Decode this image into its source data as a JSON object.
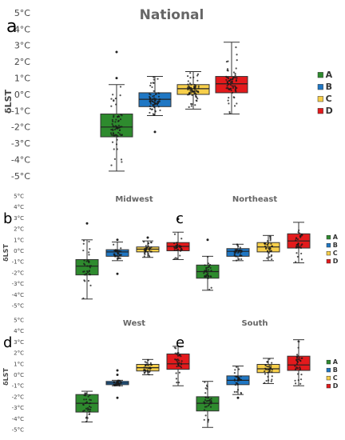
{
  "chart_data": [
    {
      "type": "box",
      "panel_letter": "a",
      "title": "National",
      "ylabel": "δLST",
      "ylim": [
        -5,
        5
      ],
      "y_ticks": [
        "5°C",
        "4°C",
        "3°C",
        "2°C",
        "1°C",
        "0°C",
        "-1°C",
        "-2°C",
        "-3°C",
        "-4°C",
        "-5°C"
      ],
      "legend": [
        "A",
        "B",
        "C",
        "D"
      ],
      "series": [
        {
          "name": "A",
          "color": "#2e8b2e",
          "min": -4.7,
          "q1": -2.6,
          "median": -2.0,
          "q3": -1.2,
          "max": 0.6,
          "outliers": [
            1.0,
            2.6
          ]
        },
        {
          "name": "B",
          "color": "#1f77c4",
          "min": -1.3,
          "q1": -0.75,
          "median": -0.3,
          "q3": 0.1,
          "max": 1.1,
          "outliers": [
            -2.3
          ]
        },
        {
          "name": "C",
          "color": "#f7cf4a",
          "min": -0.9,
          "q1": 0.0,
          "median": 0.35,
          "q3": 0.6,
          "max": 1.4,
          "outliers": []
        },
        {
          "name": "D",
          "color": "#e31a1c",
          "min": -1.2,
          "q1": 0.1,
          "median": 0.65,
          "q3": 1.1,
          "max": 3.2,
          "outliers": []
        }
      ]
    },
    {
      "type": "box",
      "panel_letter": "b",
      "title": "Midwest",
      "ylabel": "δLST",
      "ylim": [
        -5,
        5
      ],
      "y_ticks": [
        "5°C",
        "4°C",
        "3°C",
        "2°C",
        "1°C",
        "0°C",
        "-1°C",
        "-2°C",
        "-3°C",
        "-4°C",
        "-5°C"
      ],
      "series": [
        {
          "name": "A",
          "color": "#2e8b2e",
          "min": -4.4,
          "q1": -2.2,
          "median": -1.4,
          "q3": -0.8,
          "max": 1.0,
          "outliers": [
            2.5
          ]
        },
        {
          "name": "B",
          "color": "#1f77c4",
          "min": -0.9,
          "q1": -0.5,
          "median": -0.1,
          "q3": 0.1,
          "max": 0.8,
          "outliers": [
            -2.1,
            1.0
          ]
        },
        {
          "name": "C",
          "color": "#f7cf4a",
          "min": -0.6,
          "q1": -0.1,
          "median": 0.15,
          "q3": 0.35,
          "max": 0.9,
          "outliers": [
            1.2
          ]
        },
        {
          "name": "D",
          "color": "#e31a1c",
          "min": -0.8,
          "q1": 0.0,
          "median": 0.4,
          "q3": 0.75,
          "max": 1.7,
          "outliers": [
            2.9
          ]
        }
      ]
    },
    {
      "type": "box",
      "panel_letter": "c",
      "title": "Northeast",
      "legend": [
        "A",
        "B",
        "C",
        "D"
      ],
      "ylim": [
        -5,
        5
      ],
      "series": [
        {
          "name": "A",
          "color": "#2e8b2e",
          "min": -3.6,
          "q1": -2.5,
          "median": -1.9,
          "q3": -1.3,
          "max": -0.5,
          "outliers": [
            1.0
          ]
        },
        {
          "name": "B",
          "color": "#1f77c4",
          "min": -0.9,
          "q1": -0.5,
          "median": -0.05,
          "q3": 0.2,
          "max": 0.6,
          "outliers": []
        },
        {
          "name": "C",
          "color": "#f7cf4a",
          "min": -0.9,
          "q1": -0.1,
          "median": 0.35,
          "q3": 0.75,
          "max": 1.4,
          "outliers": []
        },
        {
          "name": "D",
          "color": "#e31a1c",
          "min": -1.1,
          "q1": 0.25,
          "median": 0.9,
          "q3": 1.55,
          "max": 2.6,
          "outliers": []
        }
      ]
    },
    {
      "type": "box",
      "panel_letter": "d",
      "title": "West",
      "ylabel": "δLST",
      "ylim": [
        -5,
        5
      ],
      "y_ticks": [
        "5°C",
        "4°C",
        "3°C",
        "2°C",
        "1°C",
        "0°C",
        "-1°C",
        "-2°C",
        "-3°C",
        "-4°C",
        "-5°C"
      ],
      "series": [
        {
          "name": "A",
          "color": "#2e8b2e",
          "min": -4.3,
          "q1": -3.4,
          "median": -2.6,
          "q3": -1.8,
          "max": -1.5,
          "outliers": []
        },
        {
          "name": "B",
          "color": "#1f77c4",
          "min": -1.0,
          "q1": -0.9,
          "median": -0.75,
          "q3": -0.6,
          "max": -0.5,
          "outliers": [
            -2.1,
            0.0,
            0.4
          ]
        },
        {
          "name": "C",
          "color": "#f7cf4a",
          "min": 0.0,
          "q1": 0.35,
          "median": 0.65,
          "q3": 0.95,
          "max": 1.4,
          "outliers": []
        },
        {
          "name": "D",
          "color": "#e31a1c",
          "min": -1.0,
          "q1": 0.5,
          "median": 1.0,
          "q3": 1.9,
          "max": 2.6,
          "outliers": []
        }
      ]
    },
    {
      "type": "box",
      "panel_letter": "e",
      "title": "South",
      "legend": [
        "A",
        "B",
        "C",
        "D"
      ],
      "ylim": [
        -5,
        5
      ],
      "series": [
        {
          "name": "A",
          "color": "#2e8b2e",
          "min": -4.8,
          "q1": -3.3,
          "median": -2.6,
          "q3": -2.0,
          "max": -0.6,
          "outliers": []
        },
        {
          "name": "B",
          "color": "#1f77c4",
          "min": -1.8,
          "q1": -0.9,
          "median": -0.5,
          "q3": -0.1,
          "max": 0.8,
          "outliers": [
            -2.1
          ]
        },
        {
          "name": "C",
          "color": "#f7cf4a",
          "min": -0.8,
          "q1": 0.2,
          "median": 0.55,
          "q3": 0.95,
          "max": 1.5,
          "outliers": []
        },
        {
          "name": "D",
          "color": "#e31a1c",
          "min": -1.0,
          "q1": 0.4,
          "median": 0.9,
          "q3": 1.7,
          "max": 3.2,
          "outliers": []
        }
      ]
    }
  ]
}
